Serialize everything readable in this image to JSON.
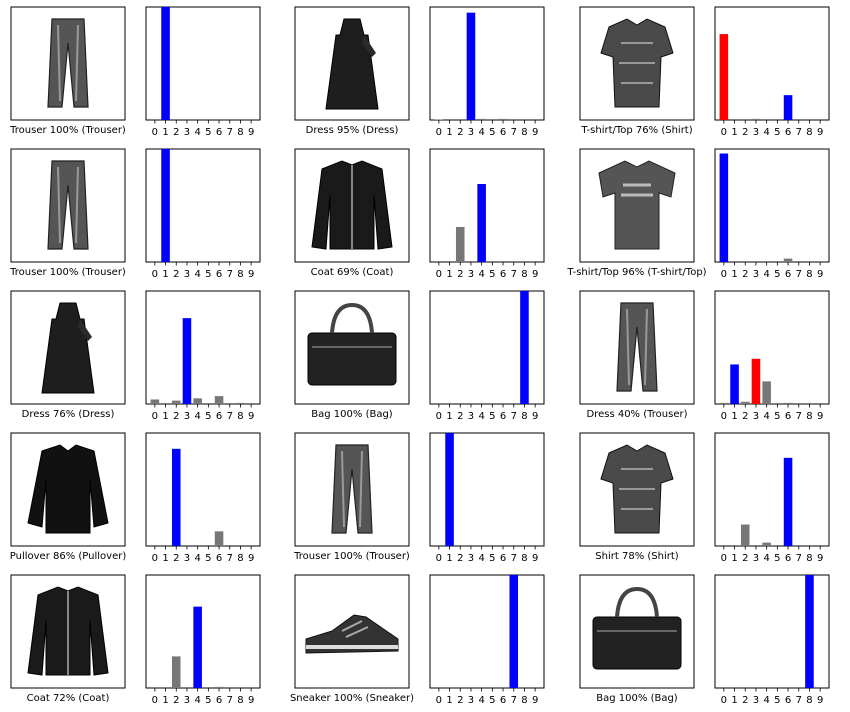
{
  "colors": {
    "true_label": "#0000ff",
    "wrong_prediction": "#ff0000",
    "other": "#777777"
  },
  "chart_data": [
    {
      "type": "image",
      "caption": "Trouser 100% (Trouser)",
      "image_icon": "trouser-icon"
    },
    {
      "type": "bar",
      "categories": [
        "0",
        "1",
        "2",
        "3",
        "4",
        "5",
        "6",
        "7",
        "8",
        "9"
      ],
      "values": [
        0,
        1.0,
        0,
        0,
        0,
        0,
        0,
        0,
        0,
        0
      ],
      "true_label": 1,
      "predicted": 1,
      "ylim": [
        0,
        1
      ]
    },
    {
      "type": "image",
      "caption": "Dress 95% (Dress)",
      "image_icon": "dress-icon"
    },
    {
      "type": "bar",
      "categories": [
        "0",
        "1",
        "2",
        "3",
        "4",
        "5",
        "6",
        "7",
        "8",
        "9"
      ],
      "values": [
        0.005,
        0,
        0,
        0.95,
        0.01,
        0,
        0.01,
        0,
        0,
        0
      ],
      "true_label": 3,
      "predicted": 3,
      "ylim": [
        0,
        1
      ]
    },
    {
      "type": "image",
      "caption": "T-shirt/Top 76% (Shirt)",
      "image_icon": "shirt-icon"
    },
    {
      "type": "bar",
      "categories": [
        "0",
        "1",
        "2",
        "3",
        "4",
        "5",
        "6",
        "7",
        "8",
        "9"
      ],
      "values": [
        0.76,
        0,
        0,
        0.01,
        0,
        0,
        0.22,
        0,
        0,
        0
      ],
      "true_label": 6,
      "predicted": 0,
      "ylim": [
        0,
        1
      ]
    },
    {
      "type": "image",
      "caption": "Trouser 100% (Trouser)",
      "image_icon": "trouser-icon"
    },
    {
      "type": "bar",
      "categories": [
        "0",
        "1",
        "2",
        "3",
        "4",
        "5",
        "6",
        "7",
        "8",
        "9"
      ],
      "values": [
        0,
        1.0,
        0,
        0,
        0,
        0,
        0,
        0,
        0,
        0
      ],
      "true_label": 1,
      "predicted": 1,
      "ylim": [
        0,
        1
      ]
    },
    {
      "type": "image",
      "caption": "Coat 69% (Coat)",
      "image_icon": "coat-icon"
    },
    {
      "type": "bar",
      "categories": [
        "0",
        "1",
        "2",
        "3",
        "4",
        "5",
        "6",
        "7",
        "8",
        "9"
      ],
      "values": [
        0,
        0,
        0.31,
        0,
        0.69,
        0,
        0,
        0,
        0,
        0
      ],
      "true_label": 4,
      "predicted": 4,
      "ylim": [
        0,
        1
      ]
    },
    {
      "type": "image",
      "caption": "T-shirt/Top 96% (T-shirt/Top)",
      "image_icon": "tshirt-icon"
    },
    {
      "type": "bar",
      "categories": [
        "0",
        "1",
        "2",
        "3",
        "4",
        "5",
        "6",
        "7",
        "8",
        "9"
      ],
      "values": [
        0.96,
        0,
        0,
        0,
        0,
        0,
        0.03,
        0,
        0,
        0
      ],
      "true_label": 0,
      "predicted": 0,
      "ylim": [
        0,
        1
      ]
    },
    {
      "type": "image",
      "caption": "Dress 76% (Dress)",
      "image_icon": "dress-icon"
    },
    {
      "type": "bar",
      "categories": [
        "0",
        "1",
        "2",
        "3",
        "4",
        "5",
        "6",
        "7",
        "8",
        "9"
      ],
      "values": [
        0.04,
        0,
        0.03,
        0.76,
        0.05,
        0,
        0.07,
        0,
        0.01,
        0
      ],
      "true_label": 3,
      "predicted": 3,
      "ylim": [
        0,
        1
      ]
    },
    {
      "type": "image",
      "caption": "Bag 100% (Bag)",
      "image_icon": "bag-icon"
    },
    {
      "type": "bar",
      "categories": [
        "0",
        "1",
        "2",
        "3",
        "4",
        "5",
        "6",
        "7",
        "8",
        "9"
      ],
      "values": [
        0,
        0,
        0,
        0,
        0,
        0,
        0,
        0,
        1.0,
        0
      ],
      "true_label": 8,
      "predicted": 8,
      "ylim": [
        0,
        1
      ]
    },
    {
      "type": "image",
      "caption": "Dress 40% (Trouser)",
      "image_icon": "trouser-icon"
    },
    {
      "type": "bar",
      "categories": [
        "0",
        "1",
        "2",
        "3",
        "4",
        "5",
        "6",
        "7",
        "8",
        "9"
      ],
      "values": [
        0.01,
        0.35,
        0.02,
        0.4,
        0.2,
        0,
        0.01,
        0,
        0,
        0
      ],
      "true_label": 1,
      "predicted": 3,
      "ylim": [
        0,
        1
      ]
    },
    {
      "type": "image",
      "caption": "Pullover 86% (Pullover)",
      "image_icon": "pullover-icon"
    },
    {
      "type": "bar",
      "categories": [
        "0",
        "1",
        "2",
        "3",
        "4",
        "5",
        "6",
        "7",
        "8",
        "9"
      ],
      "values": [
        0,
        0,
        0.86,
        0,
        0,
        0,
        0.13,
        0,
        0,
        0
      ],
      "true_label": 2,
      "predicted": 2,
      "ylim": [
        0,
        1
      ]
    },
    {
      "type": "image",
      "caption": "Trouser 100% (Trouser)",
      "image_icon": "trouser-icon"
    },
    {
      "type": "bar",
      "categories": [
        "0",
        "1",
        "2",
        "3",
        "4",
        "5",
        "6",
        "7",
        "8",
        "9"
      ],
      "values": [
        0,
        1.0,
        0,
        0,
        0,
        0,
        0,
        0,
        0,
        0
      ],
      "true_label": 1,
      "predicted": 1,
      "ylim": [
        0,
        1
      ]
    },
    {
      "type": "image",
      "caption": "Shirt 78% (Shirt)",
      "image_icon": "shirt-icon"
    },
    {
      "type": "bar",
      "categories": [
        "0",
        "1",
        "2",
        "3",
        "4",
        "5",
        "6",
        "7",
        "8",
        "9"
      ],
      "values": [
        0,
        0,
        0.19,
        0,
        0.03,
        0,
        0.78,
        0,
        0,
        0
      ],
      "true_label": 6,
      "predicted": 6,
      "ylim": [
        0,
        1
      ]
    },
    {
      "type": "image",
      "caption": "Coat 72% (Coat)",
      "image_icon": "coat-icon"
    },
    {
      "type": "bar",
      "categories": [
        "0",
        "1",
        "2",
        "3",
        "4",
        "5",
        "6",
        "7",
        "8",
        "9"
      ],
      "values": [
        0,
        0,
        0.28,
        0,
        0.72,
        0,
        0.01,
        0,
        0,
        0
      ],
      "true_label": 4,
      "predicted": 4,
      "ylim": [
        0,
        1
      ]
    },
    {
      "type": "image",
      "caption": "Sneaker 100% (Sneaker)",
      "image_icon": "sneaker-icon"
    },
    {
      "type": "bar",
      "categories": [
        "0",
        "1",
        "2",
        "3",
        "4",
        "5",
        "6",
        "7",
        "8",
        "9"
      ],
      "values": [
        0,
        0,
        0,
        0,
        0,
        0,
        0,
        1.0,
        0,
        0
      ],
      "true_label": 7,
      "predicted": 7,
      "ylim": [
        0,
        1
      ]
    },
    {
      "type": "image",
      "caption": "Bag 100% (Bag)",
      "image_icon": "bag-icon"
    },
    {
      "type": "bar",
      "categories": [
        "0",
        "1",
        "2",
        "3",
        "4",
        "5",
        "6",
        "7",
        "8",
        "9"
      ],
      "values": [
        0,
        0,
        0,
        0,
        0,
        0,
        0,
        0,
        1.0,
        0
      ],
      "true_label": 8,
      "predicted": 8,
      "ylim": [
        0,
        1
      ]
    }
  ]
}
